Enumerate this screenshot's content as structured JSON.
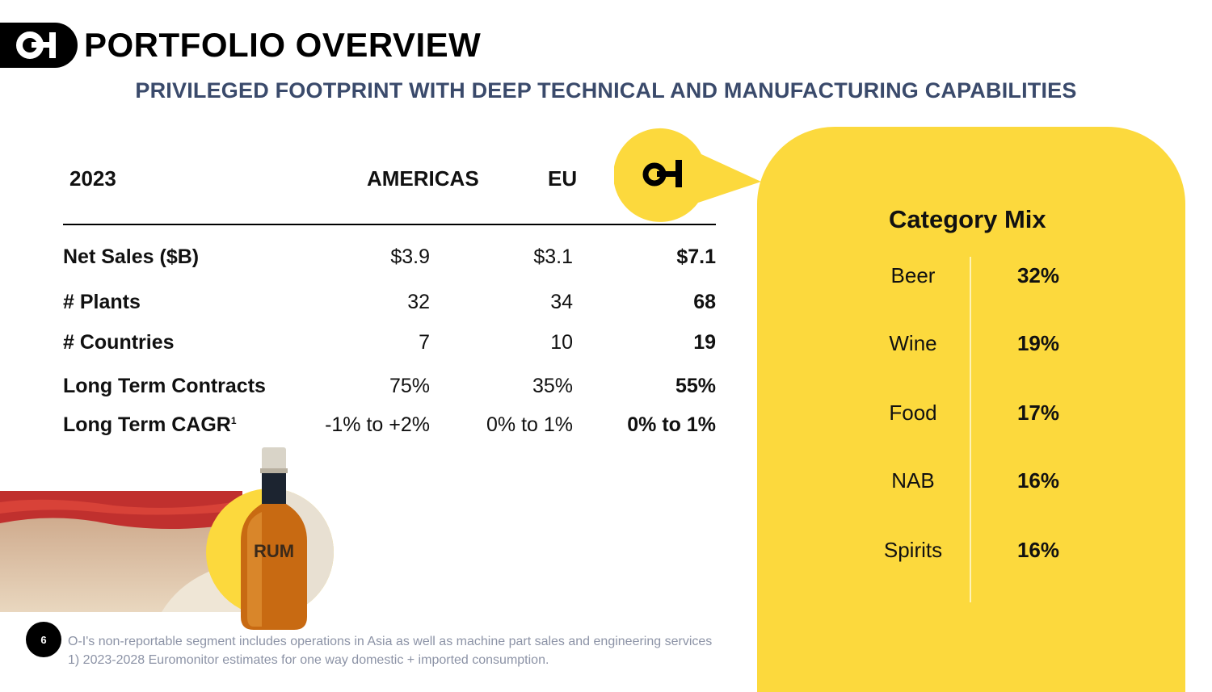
{
  "header": {
    "logo_text": "O-I",
    "title": "PORTFOLIO OVERVIEW",
    "subtitle": "PRIVILEGED FOOTPRINT WITH DEEP TECHNICAL AND MANUFACTURING CAPABILITIES"
  },
  "table": {
    "year_label": "2023",
    "columns": [
      "AMERICAS",
      "EU",
      "O-I"
    ],
    "rows": [
      {
        "label": "Net Sales ($B)",
        "americas": "$3.9",
        "eu": "$3.1",
        "total": "$7.1"
      },
      {
        "label": "# Plants",
        "americas": "32",
        "eu": "34",
        "total": "68"
      },
      {
        "label": "# Countries",
        "americas": "7",
        "eu": "10",
        "total": "19"
      },
      {
        "label": "Long Term Contracts",
        "americas": "75%",
        "eu": "35%",
        "total": "55%"
      },
      {
        "label": "Long Term CAGR",
        "footnote_mark": "1",
        "americas": "-1% to +2%",
        "eu": "0% to 1%",
        "total": "0% to 1%"
      }
    ]
  },
  "category_mix": {
    "title": "Category Mix",
    "items": [
      {
        "name": "Beer",
        "pct": "32%"
      },
      {
        "name": "Wine",
        "pct": "19%"
      },
      {
        "name": "Food",
        "pct": "17%"
      },
      {
        "name": "NAB",
        "pct": "16%"
      },
      {
        "name": "Spirits",
        "pct": "16%"
      }
    ]
  },
  "image": {
    "bottle_label": "RUM"
  },
  "footer": {
    "page_number": "6",
    "note1": "O-I's non-reportable segment includes operations in Asia as well as machine part sales and engineering services",
    "note2": "1) 2023-2028 Euromonitor estimates for one way domestic + imported consumption."
  },
  "colors": {
    "accent_yellow": "#fcd93d",
    "subtitle_navy": "#3a4a6b",
    "black": "#000000"
  }
}
